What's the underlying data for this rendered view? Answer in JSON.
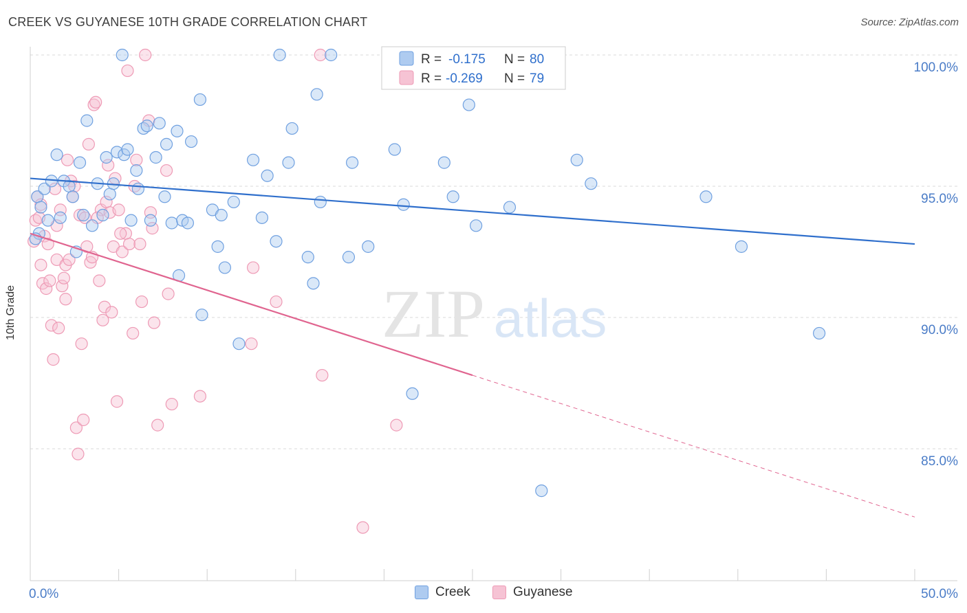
{
  "title": "CREEK VS GUYANESE 10TH GRADE CORRELATION CHART",
  "source": "Source: ZipAtlas.com",
  "watermark": {
    "zip": "ZIP",
    "atlas": "atlas"
  },
  "colors": {
    "creek": "#6fa0e0",
    "creek_fill": "#aecbf0",
    "creek_line": "#2f6fcc",
    "guyanese": "#ee9ab5",
    "guyanese_fill": "#f6c3d4",
    "guyanese_line": "#e0648f",
    "axis_label": "#4a7cc7",
    "grid": "#d8d8d8"
  },
  "legend_top": [
    {
      "r_label": "R =",
      "r_value": "-0.175",
      "n_label": "N =",
      "n_value": "80"
    },
    {
      "r_label": "R =",
      "r_value": "-0.269",
      "n_label": "N =",
      "n_value": "79"
    }
  ],
  "legend_bottom": [
    {
      "label": "Creek"
    },
    {
      "label": "Guyanese"
    }
  ],
  "chart_data": {
    "type": "scatter",
    "title": "CREEK VS GUYANESE 10TH GRADE CORRELATION CHART",
    "xlabel": "",
    "ylabel": "10th Grade",
    "xlim": [
      0,
      50
    ],
    "ylim": [
      80.5,
      101
    ],
    "x_tick_labels": [
      "0.0%",
      "50.0%"
    ],
    "y_ticks": [
      85,
      90,
      95,
      100
    ],
    "y_tick_labels": [
      "85.0%",
      "90.0%",
      "95.0%",
      "100.0%"
    ],
    "grid": true,
    "legend_placement": "top-center",
    "series": [
      {
        "name": "Creek",
        "r": -0.175,
        "n": 80,
        "trend": {
          "x": [
            0,
            50
          ],
          "y": [
            95.3,
            92.8
          ]
        },
        "points": [
          [
            0.4,
            94.6
          ],
          [
            0.5,
            93.2
          ],
          [
            0.6,
            94.2
          ],
          [
            0.8,
            94.9
          ],
          [
            1.0,
            93.7
          ],
          [
            1.5,
            96.2
          ],
          [
            1.7,
            93.8
          ],
          [
            1.9,
            95.2
          ],
          [
            2.2,
            95.0
          ],
          [
            2.4,
            94.6
          ],
          [
            2.6,
            92.5
          ],
          [
            2.8,
            95.9
          ],
          [
            3.0,
            93.9
          ],
          [
            3.2,
            97.5
          ],
          [
            3.5,
            93.5
          ],
          [
            3.8,
            95.1
          ],
          [
            4.1,
            93.9
          ],
          [
            4.3,
            96.1
          ],
          [
            4.5,
            94.7
          ],
          [
            4.7,
            95.1
          ],
          [
            4.9,
            96.3
          ],
          [
            5.2,
            100.0
          ],
          [
            5.3,
            96.2
          ],
          [
            5.5,
            96.4
          ],
          [
            5.7,
            93.7
          ],
          [
            6.0,
            95.6
          ],
          [
            6.1,
            94.9
          ],
          [
            6.4,
            97.2
          ],
          [
            6.6,
            97.3
          ],
          [
            6.8,
            93.7
          ],
          [
            7.1,
            96.1
          ],
          [
            7.3,
            97.4
          ],
          [
            7.6,
            94.6
          ],
          [
            7.7,
            96.6
          ],
          [
            8.0,
            93.6
          ],
          [
            8.3,
            97.1
          ],
          [
            8.4,
            91.6
          ],
          [
            8.6,
            93.7
          ],
          [
            8.9,
            93.6
          ],
          [
            9.1,
            96.7
          ],
          [
            9.6,
            98.3
          ],
          [
            9.7,
            90.1
          ],
          [
            10.3,
            94.1
          ],
          [
            10.6,
            92.7
          ],
          [
            10.8,
            93.9
          ],
          [
            11.0,
            91.9
          ],
          [
            11.5,
            94.4
          ],
          [
            11.8,
            89.0
          ],
          [
            12.6,
            96.0
          ],
          [
            13.1,
            93.8
          ],
          [
            13.4,
            95.4
          ],
          [
            13.9,
            92.9
          ],
          [
            14.1,
            100.0
          ],
          [
            14.6,
            95.9
          ],
          [
            14.8,
            97.2
          ],
          [
            15.7,
            92.3
          ],
          [
            16.0,
            91.3
          ],
          [
            16.2,
            98.5
          ],
          [
            16.4,
            94.4
          ],
          [
            17.0,
            100.0
          ],
          [
            18.0,
            92.3
          ],
          [
            18.2,
            95.9
          ],
          [
            19.1,
            92.7
          ],
          [
            20.6,
            96.4
          ],
          [
            21.1,
            94.3
          ],
          [
            21.6,
            87.1
          ],
          [
            23.4,
            95.9
          ],
          [
            23.8,
            100.0
          ],
          [
            23.9,
            94.6
          ],
          [
            24.8,
            98.1
          ],
          [
            25.2,
            93.5
          ],
          [
            27.1,
            94.2
          ],
          [
            28.9,
            83.4
          ],
          [
            30.9,
            96.0
          ],
          [
            31.7,
            95.1
          ],
          [
            38.2,
            94.6
          ],
          [
            40.2,
            92.7
          ],
          [
            44.6,
            89.4
          ],
          [
            0.3,
            93.0
          ],
          [
            1.2,
            95.2
          ]
        ]
      },
      {
        "name": "Guyanese",
        "r": -0.269,
        "n": 79,
        "trend": {
          "x": [
            0,
            25
          ],
          "y": [
            93.2,
            87.8
          ]
        },
        "trend_dashed": {
          "x": [
            25,
            50
          ],
          "y": [
            87.8,
            82.4
          ]
        },
        "points": [
          [
            0.3,
            93.7
          ],
          [
            0.4,
            94.6
          ],
          [
            0.5,
            93.8
          ],
          [
            0.6,
            94.3
          ],
          [
            0.7,
            91.3
          ],
          [
            0.8,
            93.1
          ],
          [
            0.9,
            91.1
          ],
          [
            1.0,
            92.8
          ],
          [
            1.1,
            91.4
          ],
          [
            1.2,
            89.7
          ],
          [
            1.3,
            88.4
          ],
          [
            1.4,
            94.9
          ],
          [
            1.5,
            92.2
          ],
          [
            1.6,
            89.6
          ],
          [
            1.7,
            94.1
          ],
          [
            1.8,
            91.2
          ],
          [
            1.9,
            91.5
          ],
          [
            2.0,
            92.0
          ],
          [
            2.1,
            96.0
          ],
          [
            2.2,
            92.2
          ],
          [
            2.3,
            95.2
          ],
          [
            2.4,
            94.6
          ],
          [
            2.5,
            95.0
          ],
          [
            2.6,
            85.8
          ],
          [
            2.7,
            84.8
          ],
          [
            2.8,
            93.9
          ],
          [
            2.9,
            89.0
          ],
          [
            3.0,
            86.1
          ],
          [
            3.1,
            93.8
          ],
          [
            3.2,
            92.7
          ],
          [
            3.3,
            96.6
          ],
          [
            3.4,
            92.1
          ],
          [
            3.5,
            92.3
          ],
          [
            3.6,
            98.1
          ],
          [
            3.7,
            98.2
          ],
          [
            3.9,
            91.4
          ],
          [
            4.0,
            94.1
          ],
          [
            4.2,
            90.4
          ],
          [
            4.3,
            94.4
          ],
          [
            4.4,
            95.8
          ],
          [
            4.5,
            94.0
          ],
          [
            4.6,
            90.2
          ],
          [
            4.7,
            92.7
          ],
          [
            4.8,
            95.3
          ],
          [
            4.9,
            86.8
          ],
          [
            5.0,
            94.1
          ],
          [
            5.2,
            92.5
          ],
          [
            5.4,
            93.2
          ],
          [
            5.5,
            99.4
          ],
          [
            5.6,
            92.8
          ],
          [
            5.8,
            89.4
          ],
          [
            5.9,
            95.0
          ],
          [
            6.0,
            96.0
          ],
          [
            6.2,
            92.8
          ],
          [
            6.3,
            90.6
          ],
          [
            6.5,
            100.0
          ],
          [
            6.7,
            97.5
          ],
          [
            6.8,
            94.0
          ],
          [
            6.9,
            93.4
          ],
          [
            7.0,
            89.8
          ],
          [
            7.2,
            85.9
          ],
          [
            7.7,
            95.6
          ],
          [
            7.8,
            90.9
          ],
          [
            8.0,
            86.7
          ],
          [
            9.6,
            87.0
          ],
          [
            12.5,
            89.0
          ],
          [
            12.6,
            91.9
          ],
          [
            13.9,
            90.6
          ],
          [
            16.4,
            100.0
          ],
          [
            16.5,
            87.8
          ],
          [
            18.8,
            82.0
          ],
          [
            20.7,
            85.9
          ],
          [
            0.2,
            92.9
          ],
          [
            0.6,
            92.0
          ],
          [
            1.5,
            93.5
          ],
          [
            3.8,
            93.8
          ],
          [
            5.1,
            93.2
          ],
          [
            2.0,
            90.7
          ],
          [
            4.1,
            89.9
          ]
        ]
      }
    ]
  }
}
